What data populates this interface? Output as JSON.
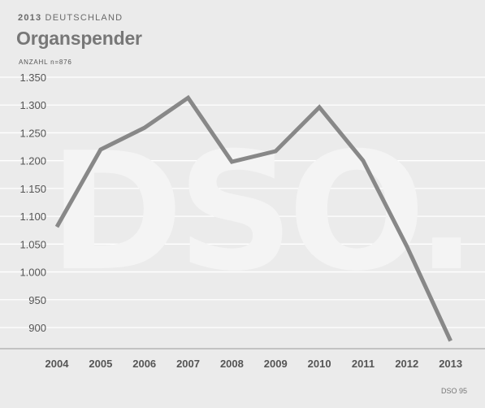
{
  "header": {
    "year": "2013",
    "region": "DEUTSCHLAND",
    "title": "Organspender",
    "unit_prefix": "ANZAHL",
    "unit_n": "n=876"
  },
  "watermark": {
    "text": "DSO."
  },
  "footer": {
    "source": "DSO 95"
  },
  "chart_data": {
    "type": "line",
    "title": "Organspender",
    "subtitle": "2013 DEUTSCHLAND",
    "ylabel": "ANZAHL n=876",
    "xlabel": "",
    "x": [
      "2004",
      "2005",
      "2006",
      "2007",
      "2008",
      "2009",
      "2010",
      "2011",
      "2012",
      "2013"
    ],
    "series": [
      {
        "values": [
          1081,
          1220,
          1259,
          1313,
          1198,
          1217,
          1296,
          1200,
          1046,
          876
        ]
      }
    ],
    "yticks": [
      900,
      950,
      1000,
      1050,
      1100,
      1150,
      1200,
      1250,
      1300,
      1350
    ],
    "ytick_labels": [
      "900",
      "950",
      "1.000",
      "1.050",
      "1.100",
      "1.150",
      "1.200",
      "1.250",
      "1.300",
      "1.350"
    ],
    "ylim": [
      850,
      1355
    ],
    "grid": true,
    "legend": "none",
    "colors": {
      "line": "#888888",
      "grid": "#ffffff",
      "axis": "#9a9a9a",
      "background": "#ebebeb"
    }
  }
}
